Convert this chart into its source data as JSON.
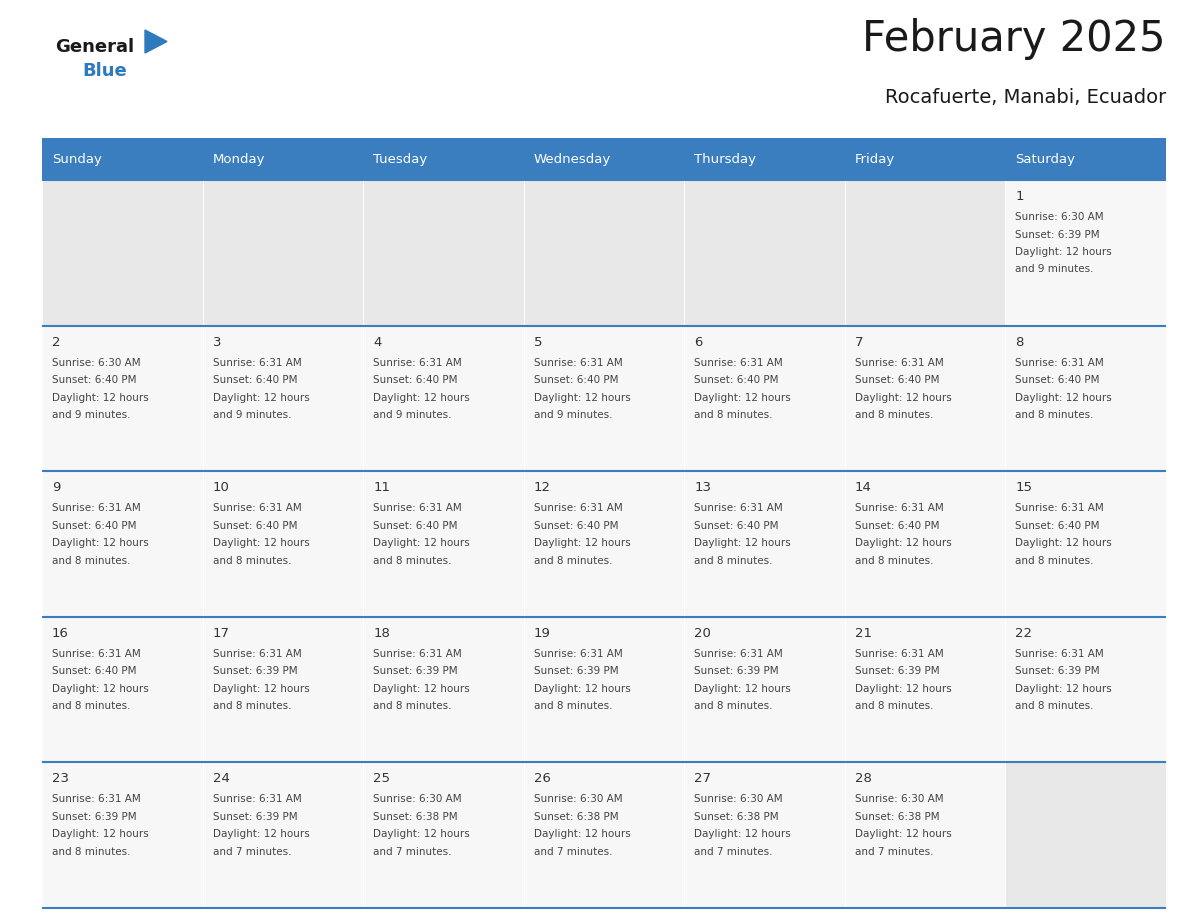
{
  "title": "February 2025",
  "subtitle": "Rocafuerte, Manabi, Ecuador",
  "header_color": "#3a7ebf",
  "header_text_color": "#ffffff",
  "days_of_week": [
    "Sunday",
    "Monday",
    "Tuesday",
    "Wednesday",
    "Thursday",
    "Friday",
    "Saturday"
  ],
  "empty_cell_bg": "#e8e8e8",
  "filled_cell_bg": "#f7f7f7",
  "border_color": "#3a7ebf",
  "text_color": "#444444",
  "day_num_color": "#333333",
  "logo_general_color": "#1a1a1a",
  "logo_blue_color": "#2e7abf",
  "logo_triangle_color": "#2e7abf",
  "calendar": [
    [
      null,
      null,
      null,
      null,
      null,
      null,
      {
        "day": 1,
        "sunrise": "6:30 AM",
        "sunset": "6:39 PM",
        "daylight": "12 hours\nand 9 minutes."
      }
    ],
    [
      {
        "day": 2,
        "sunrise": "6:30 AM",
        "sunset": "6:40 PM",
        "daylight": "12 hours\nand 9 minutes."
      },
      {
        "day": 3,
        "sunrise": "6:31 AM",
        "sunset": "6:40 PM",
        "daylight": "12 hours\nand 9 minutes."
      },
      {
        "day": 4,
        "sunrise": "6:31 AM",
        "sunset": "6:40 PM",
        "daylight": "12 hours\nand 9 minutes."
      },
      {
        "day": 5,
        "sunrise": "6:31 AM",
        "sunset": "6:40 PM",
        "daylight": "12 hours\nand 9 minutes."
      },
      {
        "day": 6,
        "sunrise": "6:31 AM",
        "sunset": "6:40 PM",
        "daylight": "12 hours\nand 8 minutes."
      },
      {
        "day": 7,
        "sunrise": "6:31 AM",
        "sunset": "6:40 PM",
        "daylight": "12 hours\nand 8 minutes."
      },
      {
        "day": 8,
        "sunrise": "6:31 AM",
        "sunset": "6:40 PM",
        "daylight": "12 hours\nand 8 minutes."
      }
    ],
    [
      {
        "day": 9,
        "sunrise": "6:31 AM",
        "sunset": "6:40 PM",
        "daylight": "12 hours\nand 8 minutes."
      },
      {
        "day": 10,
        "sunrise": "6:31 AM",
        "sunset": "6:40 PM",
        "daylight": "12 hours\nand 8 minutes."
      },
      {
        "day": 11,
        "sunrise": "6:31 AM",
        "sunset": "6:40 PM",
        "daylight": "12 hours\nand 8 minutes."
      },
      {
        "day": 12,
        "sunrise": "6:31 AM",
        "sunset": "6:40 PM",
        "daylight": "12 hours\nand 8 minutes."
      },
      {
        "day": 13,
        "sunrise": "6:31 AM",
        "sunset": "6:40 PM",
        "daylight": "12 hours\nand 8 minutes."
      },
      {
        "day": 14,
        "sunrise": "6:31 AM",
        "sunset": "6:40 PM",
        "daylight": "12 hours\nand 8 minutes."
      },
      {
        "day": 15,
        "sunrise": "6:31 AM",
        "sunset": "6:40 PM",
        "daylight": "12 hours\nand 8 minutes."
      }
    ],
    [
      {
        "day": 16,
        "sunrise": "6:31 AM",
        "sunset": "6:40 PM",
        "daylight": "12 hours\nand 8 minutes."
      },
      {
        "day": 17,
        "sunrise": "6:31 AM",
        "sunset": "6:39 PM",
        "daylight": "12 hours\nand 8 minutes."
      },
      {
        "day": 18,
        "sunrise": "6:31 AM",
        "sunset": "6:39 PM",
        "daylight": "12 hours\nand 8 minutes."
      },
      {
        "day": 19,
        "sunrise": "6:31 AM",
        "sunset": "6:39 PM",
        "daylight": "12 hours\nand 8 minutes."
      },
      {
        "day": 20,
        "sunrise": "6:31 AM",
        "sunset": "6:39 PM",
        "daylight": "12 hours\nand 8 minutes."
      },
      {
        "day": 21,
        "sunrise": "6:31 AM",
        "sunset": "6:39 PM",
        "daylight": "12 hours\nand 8 minutes."
      },
      {
        "day": 22,
        "sunrise": "6:31 AM",
        "sunset": "6:39 PM",
        "daylight": "12 hours\nand 8 minutes."
      }
    ],
    [
      {
        "day": 23,
        "sunrise": "6:31 AM",
        "sunset": "6:39 PM",
        "daylight": "12 hours\nand 8 minutes."
      },
      {
        "day": 24,
        "sunrise": "6:31 AM",
        "sunset": "6:39 PM",
        "daylight": "12 hours\nand 7 minutes."
      },
      {
        "day": 25,
        "sunrise": "6:30 AM",
        "sunset": "6:38 PM",
        "daylight": "12 hours\nand 7 minutes."
      },
      {
        "day": 26,
        "sunrise": "6:30 AM",
        "sunset": "6:38 PM",
        "daylight": "12 hours\nand 7 minutes."
      },
      {
        "day": 27,
        "sunrise": "6:30 AM",
        "sunset": "6:38 PM",
        "daylight": "12 hours\nand 7 minutes."
      },
      {
        "day": 28,
        "sunrise": "6:30 AM",
        "sunset": "6:38 PM",
        "daylight": "12 hours\nand 7 minutes."
      },
      null
    ]
  ]
}
